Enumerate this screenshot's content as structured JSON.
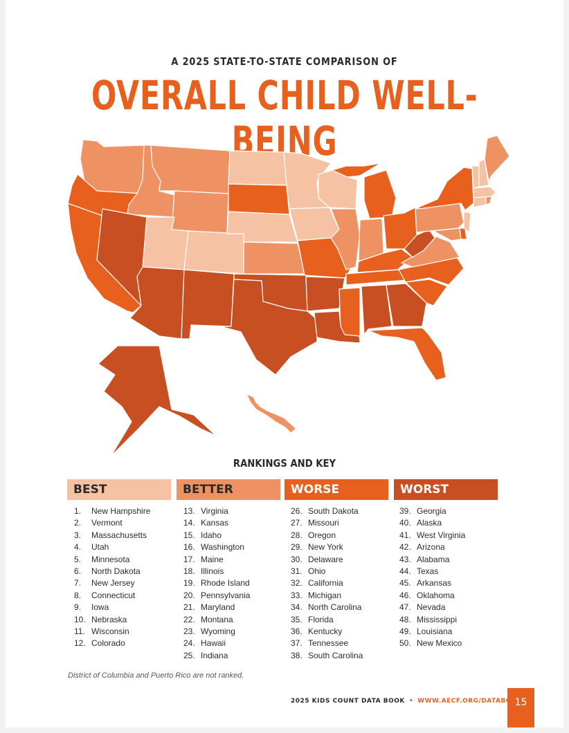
{
  "header": {
    "supertitle": "A 2025 STATE-TO-STATE COMPARISON OF",
    "title": "OVERALL CHILD WELL-BEING"
  },
  "key": {
    "title": "RANKINGS AND KEY",
    "categories": [
      {
        "label": "BEST",
        "color": "#f5c2a3",
        "text_color": "#2a2a2a"
      },
      {
        "label": "BETTER",
        "color": "#ef9263",
        "text_color": "#2a2a2a"
      },
      {
        "label": "WORSE",
        "color": "#e8601e",
        "text_color": "#ffffff"
      },
      {
        "label": "WORST",
        "color": "#c84f21",
        "text_color": "#ffffff"
      }
    ]
  },
  "rankings": {
    "best": [
      {
        "rank": "1.",
        "state": "New Hampshire"
      },
      {
        "rank": "2.",
        "state": "Vermont"
      },
      {
        "rank": "3.",
        "state": "Massachusetts"
      },
      {
        "rank": "4.",
        "state": "Utah"
      },
      {
        "rank": "5.",
        "state": "Minnesota"
      },
      {
        "rank": "6.",
        "state": "North Dakota"
      },
      {
        "rank": "7.",
        "state": "New Jersey"
      },
      {
        "rank": "8.",
        "state": "Connecticut"
      },
      {
        "rank": "9.",
        "state": "Iowa"
      },
      {
        "rank": "10.",
        "state": "Nebraska"
      },
      {
        "rank": "11.",
        "state": "Wisconsin"
      },
      {
        "rank": "12.",
        "state": "Colorado"
      }
    ],
    "better": [
      {
        "rank": "13.",
        "state": "Virginia"
      },
      {
        "rank": "14.",
        "state": "Kansas"
      },
      {
        "rank": "15.",
        "state": "Idaho"
      },
      {
        "rank": "16.",
        "state": "Washington"
      },
      {
        "rank": "17.",
        "state": "Maine"
      },
      {
        "rank": "18.",
        "state": "Illinois"
      },
      {
        "rank": "19.",
        "state": "Rhode Island"
      },
      {
        "rank": "20.",
        "state": "Pennsylvania"
      },
      {
        "rank": "21.",
        "state": "Maryland"
      },
      {
        "rank": "22.",
        "state": "Montana"
      },
      {
        "rank": "23.",
        "state": "Wyoming"
      },
      {
        "rank": "24.",
        "state": "Hawaii"
      },
      {
        "rank": "25.",
        "state": "Indiana"
      }
    ],
    "worse": [
      {
        "rank": "26.",
        "state": "South Dakota"
      },
      {
        "rank": "27.",
        "state": "Missouri"
      },
      {
        "rank": "28.",
        "state": "Oregon"
      },
      {
        "rank": "29.",
        "state": "New York"
      },
      {
        "rank": "30.",
        "state": "Delaware"
      },
      {
        "rank": "31.",
        "state": "Ohio"
      },
      {
        "rank": "32.",
        "state": "California"
      },
      {
        "rank": "33.",
        "state": "Michigan"
      },
      {
        "rank": "34.",
        "state": "North Carolina"
      },
      {
        "rank": "35.",
        "state": "Florida"
      },
      {
        "rank": "36.",
        "state": "Kentucky"
      },
      {
        "rank": "37.",
        "state": "Tennessee"
      },
      {
        "rank": "38.",
        "state": "South Carolina"
      }
    ],
    "worst": [
      {
        "rank": "39.",
        "state": "Georgia"
      },
      {
        "rank": "40.",
        "state": "Alaska"
      },
      {
        "rank": "41.",
        "state": "West Virginia"
      },
      {
        "rank": "42.",
        "state": "Arizona"
      },
      {
        "rank": "43.",
        "state": "Alabama"
      },
      {
        "rank": "44.",
        "state": "Texas"
      },
      {
        "rank": "45.",
        "state": "Arkansas"
      },
      {
        "rank": "46.",
        "state": "Oklahoma"
      },
      {
        "rank": "47.",
        "state": "Nevada"
      },
      {
        "rank": "48.",
        "state": "Mississippi"
      },
      {
        "rank": "49.",
        "state": "Louisiana"
      },
      {
        "rank": "50.",
        "state": "New Mexico"
      }
    ]
  },
  "note": "District of Columbia and Puerto Rico are not ranked.",
  "footer": {
    "book": "2025 KIDS COUNT DATA BOOK",
    "separator": "•",
    "url": "WWW.AECF.ORG/DATABOOK",
    "page": "15"
  }
}
